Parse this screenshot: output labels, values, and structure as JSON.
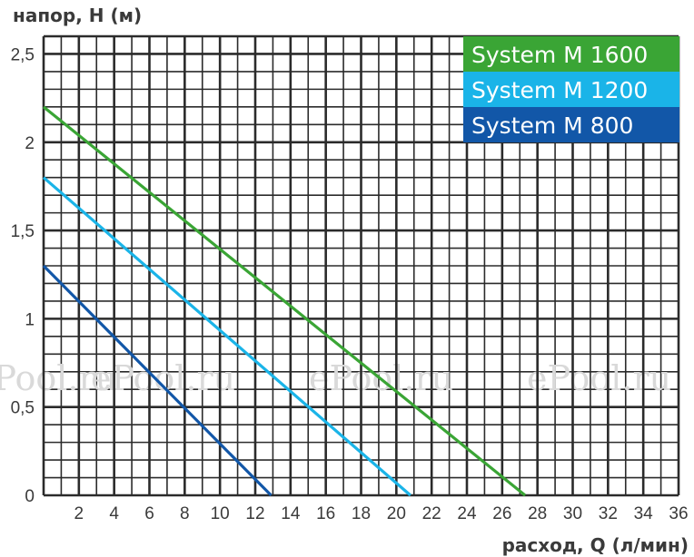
{
  "chart_data": {
    "type": "line",
    "ylabel": "напор, H (м)",
    "xlabel": "расход, Q (л/мин)",
    "xlim": [
      0,
      36
    ],
    "ylim": [
      0,
      2.6
    ],
    "x_ticks": [
      2,
      4,
      6,
      8,
      10,
      12,
      14,
      16,
      18,
      20,
      22,
      24,
      26,
      28,
      30,
      32,
      34,
      36
    ],
    "x_tick_labels": [
      "2",
      "4",
      "6",
      "8",
      "10",
      "12",
      "14",
      "16",
      "18",
      "20",
      "22",
      "24",
      "26",
      "28",
      "30",
      "32",
      "34",
      "36"
    ],
    "y_ticks": [
      0,
      0.5,
      1,
      1.5,
      2,
      2.5
    ],
    "y_tick_labels": [
      "0",
      "0,5",
      "1",
      "1,5",
      "2",
      "2,5"
    ],
    "grid": true,
    "legend_position": "top-right",
    "series": [
      {
        "name": "System M 1600",
        "color": "#3aa535",
        "x": [
          0,
          27.3
        ],
        "y": [
          2.2,
          0
        ]
      },
      {
        "name": "System M 1200",
        "color": "#1ab4e8",
        "x": [
          0,
          20.8
        ],
        "y": [
          1.8,
          0
        ]
      },
      {
        "name": "System M 800",
        "color": "#1257a8",
        "x": [
          0,
          12.9
        ],
        "y": [
          1.3,
          0
        ]
      }
    ],
    "watermark": "ePool.ru"
  }
}
